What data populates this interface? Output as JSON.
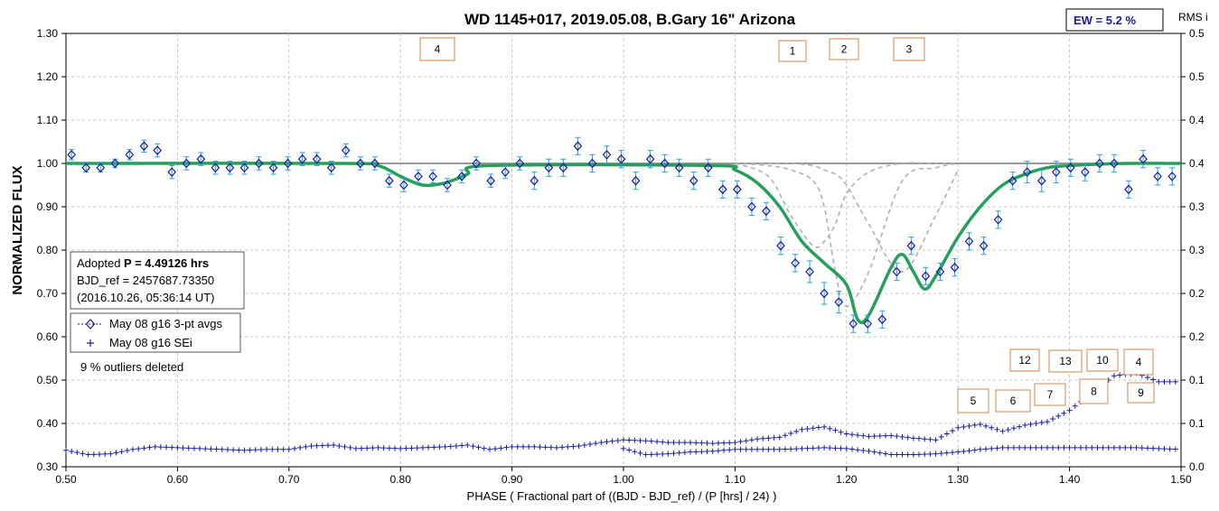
{
  "chart_data": {
    "type": "scatter",
    "title": "WD 1145+017, 2019.05.08, B.Gary 16\" Arizona",
    "xlabel": "PHASE ( Fractional part of ((BJD - BJD_ref) / (P [hrs] / 24) )",
    "ylabel": "NORMALIZED FLUX",
    "y2label": "RMS i",
    "xlim": [
      0.5,
      1.5
    ],
    "ylim": [
      0.3,
      1.3
    ],
    "y2lim": [
      0.0,
      0.5
    ],
    "x_ticks": [
      "0.50",
      "0.60",
      "0.70",
      "0.80",
      "0.90",
      "1.00",
      "1.10",
      "1.20",
      "1.30",
      "1.40",
      "1.50"
    ],
    "y_ticks": [
      "0.30",
      "0.40",
      "0.50",
      "0.60",
      "0.70",
      "0.80",
      "0.90",
      "1.00",
      "1.10",
      "1.20",
      "1.30"
    ],
    "y2_ticks": [
      "0.0",
      "0.1",
      "0.1",
      "0.2",
      "0.2",
      "0.3",
      "0.3",
      "0.4",
      "0.4",
      "0.5",
      "0.5"
    ],
    "grid": true,
    "ew_label": "EW =  5.2 %",
    "info_box": {
      "line1_prefix": "Adopted ",
      "line1_bold": "P = 4.49126 hrs",
      "line2": "BJD_ref = 2457687.73350",
      "line3": "(2016.10.26, 05:36:14 UT)"
    },
    "legend": {
      "placement": "middle-left",
      "entries": [
        "May 08 g16 3-pt avgs",
        "May 08 g16 SEi"
      ]
    },
    "note": "9 % outliers deleted",
    "dip_labels": [
      "4",
      "1",
      "2",
      "3"
    ],
    "rms_labels": [
      "12",
      "13",
      "10",
      "4",
      "5",
      "6",
      "7",
      "8",
      "9"
    ],
    "series": [
      {
        "name": "May 08 g16 3-pt avgs",
        "x": [
          0.505,
          0.518,
          0.531,
          0.544,
          0.557,
          0.57,
          0.582,
          0.595,
          0.608,
          0.621,
          0.634,
          0.647,
          0.66,
          0.673,
          0.686,
          0.699,
          0.712,
          0.725,
          0.738,
          0.751,
          0.764,
          0.777,
          0.79,
          0.803,
          0.816,
          0.829,
          0.842,
          0.855,
          0.868,
          0.881,
          0.894,
          0.907,
          0.92,
          0.933,
          0.946,
          0.959,
          0.972,
          0.985,
          0.998,
          1.011,
          1.024,
          1.037,
          1.05,
          1.063,
          1.076,
          1.089,
          1.102,
          1.115,
          1.128,
          1.141,
          1.154,
          1.167,
          1.18,
          1.193,
          1.206,
          1.219,
          1.232,
          1.245,
          1.258,
          1.271,
          1.284,
          1.297,
          1.31,
          1.323,
          1.336,
          1.349,
          1.362,
          1.375,
          1.388,
          1.401,
          1.414,
          1.427,
          1.44,
          1.453,
          1.466,
          1.479,
          1.492
        ],
        "y": [
          1.02,
          0.99,
          0.99,
          1.0,
          1.02,
          1.04,
          1.03,
          0.98,
          1.0,
          1.01,
          0.99,
          0.99,
          0.99,
          1.0,
          0.99,
          1.0,
          1.01,
          1.01,
          0.99,
          1.03,
          1.0,
          1.0,
          0.96,
          0.95,
          0.97,
          0.97,
          0.95,
          0.97,
          1.0,
          0.96,
          0.98,
          1.0,
          0.96,
          0.99,
          0.99,
          1.04,
          1.0,
          1.02,
          1.01,
          0.96,
          1.01,
          1.0,
          0.99,
          0.96,
          0.99,
          0.94,
          0.94,
          0.9,
          0.89,
          0.81,
          0.77,
          0.75,
          0.7,
          0.68,
          0.63,
          0.63,
          0.64,
          0.75,
          0.81,
          0.74,
          0.75,
          0.76,
          0.82,
          0.81,
          0.87,
          0.96,
          0.98,
          0.96,
          0.98,
          0.99,
          0.98,
          1.0,
          1.0,
          0.94,
          1.01,
          0.97,
          0.97
        ],
        "err": [
          0.012,
          0.01,
          0.01,
          0.01,
          0.012,
          0.014,
          0.015,
          0.015,
          0.015,
          0.015,
          0.015,
          0.015,
          0.015,
          0.015,
          0.015,
          0.015,
          0.015,
          0.015,
          0.015,
          0.015,
          0.015,
          0.015,
          0.015,
          0.015,
          0.015,
          0.015,
          0.015,
          0.015,
          0.015,
          0.015,
          0.015,
          0.015,
          0.02,
          0.02,
          0.02,
          0.02,
          0.02,
          0.02,
          0.02,
          0.02,
          0.02,
          0.02,
          0.02,
          0.02,
          0.02,
          0.02,
          0.02,
          0.02,
          0.02,
          0.02,
          0.02,
          0.025,
          0.025,
          0.025,
          0.02,
          0.02,
          0.02,
          0.02,
          0.02,
          0.02,
          0.02,
          0.02,
          0.02,
          0.02,
          0.02,
          0.02,
          0.025,
          0.025,
          0.025,
          0.02,
          0.02,
          0.02,
          0.02,
          0.02,
          0.02,
          0.02,
          0.02
        ]
      },
      {
        "name": "May 08 g16 SEi",
        "x": [
          0.5,
          0.52,
          0.54,
          0.56,
          0.58,
          0.6,
          0.62,
          0.64,
          0.66,
          0.68,
          0.7,
          0.72,
          0.74,
          0.76,
          0.78,
          0.8,
          0.82,
          0.84,
          0.86,
          0.88,
          0.9,
          0.92,
          0.94,
          0.96,
          0.98,
          1.0,
          1.02,
          1.04,
          1.06,
          1.08,
          1.1,
          1.12,
          1.14,
          1.16,
          1.18,
          1.2,
          1.22,
          1.24,
          1.26,
          1.28,
          1.3,
          1.32,
          1.34,
          1.36,
          1.38,
          1.4,
          1.42,
          1.44,
          1.46,
          1.48,
          1.5
        ],
        "y": [
          0.019,
          0.014,
          0.015,
          0.02,
          0.023,
          0.022,
          0.021,
          0.02,
          0.019,
          0.02,
          0.02,
          0.024,
          0.025,
          0.021,
          0.022,
          0.021,
          0.022,
          0.023,
          0.025,
          0.02,
          0.023,
          0.023,
          0.022,
          0.024,
          0.028,
          0.031,
          0.03,
          0.028,
          0.028,
          0.027,
          0.028,
          0.032,
          0.034,
          0.043,
          0.046,
          0.038,
          0.035,
          0.036,
          0.033,
          0.031,
          0.045,
          0.049,
          0.041,
          0.048,
          0.052,
          0.065,
          0.085,
          0.105,
          0.108,
          0.098,
          0.098
        ],
        "y2": [
          0.02,
          0.018,
          0.019,
          0.02,
          0.021,
          0.021,
          0.021,
          0.021,
          0.021,
          0.021,
          0.021,
          0.021,
          0.021,
          0.021,
          0.021,
          0.021,
          0.021,
          0.021,
          0.021,
          0.021,
          0.021,
          0.021,
          0.021,
          0.021,
          0.021,
          0.021,
          0.014,
          0.015,
          0.017,
          0.018,
          0.02,
          0.02,
          0.02,
          0.021,
          0.022,
          0.021,
          0.018,
          0.014,
          0.014,
          0.015,
          0.017,
          0.02,
          0.022,
          0.022,
          0.022,
          0.022,
          0.022,
          0.022,
          0.022,
          0.021,
          0.02
        ]
      },
      {
        "name": "",
        "x": [
          0.5,
          0.75,
          0.78,
          0.8,
          0.82,
          0.84,
          0.86,
          0.88,
          1.08,
          1.1,
          1.12,
          1.14,
          1.16,
          1.18,
          1.2,
          1.21,
          1.22,
          1.24,
          1.25,
          1.26,
          1.27,
          1.28,
          1.3,
          1.32,
          1.34,
          1.36,
          1.38,
          1.4,
          1.45,
          1.5
        ],
        "y": [
          1.0,
          1.0,
          0.995,
          0.97,
          0.95,
          0.955,
          0.975,
          0.995,
          0.995,
          0.985,
          0.955,
          0.9,
          0.82,
          0.77,
          0.72,
          0.64,
          0.65,
          0.76,
          0.79,
          0.75,
          0.71,
          0.74,
          0.83,
          0.9,
          0.95,
          0.975,
          0.99,
          0.995,
          1.0,
          1.0
        ]
      },
      {
        "name": "",
        "x": [
          1.1,
          1.13,
          1.15,
          1.17,
          1.18,
          1.19,
          1.2,
          1.22,
          1.25,
          1.28,
          1.3
        ],
        "y": [
          1.0,
          0.97,
          0.88,
          0.81,
          0.82,
          0.86,
          0.93,
          0.98,
          1.0,
          1.0,
          1.0
        ],
        "y_b": [
          1.0,
          0.995,
          0.985,
          0.96,
          0.9,
          0.75,
          0.67,
          0.75,
          0.96,
          0.99,
          1.0
        ],
        "y_c": [
          1.0,
          1.0,
          1.0,
          0.995,
          0.985,
          0.975,
          0.95,
          0.86,
          0.75,
          0.88,
          0.985
        ]
      }
    ]
  }
}
